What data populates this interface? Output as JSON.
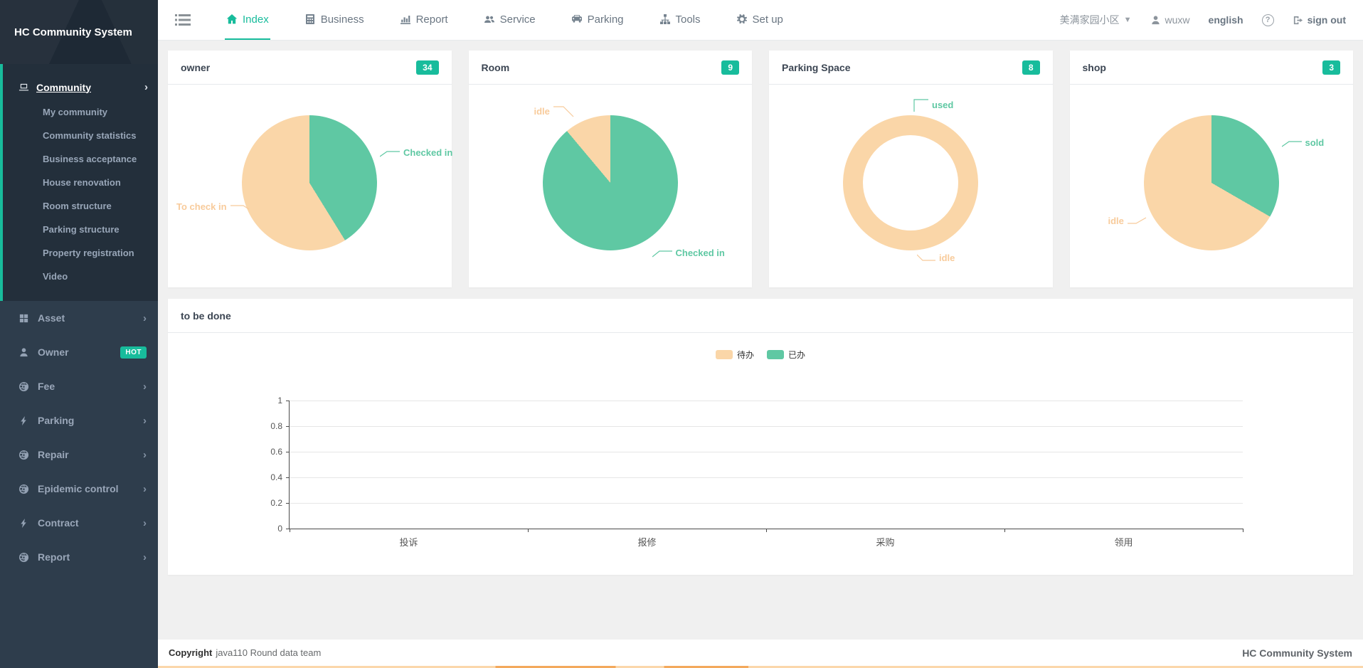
{
  "sidebar": {
    "title": "HC Community System",
    "community_group": {
      "label": "Community",
      "items": [
        "My community",
        "Community statistics",
        "Business acceptance",
        "House renovation",
        "Room structure",
        "Parking structure",
        "Property registration",
        "Video"
      ]
    },
    "items": [
      {
        "label": "Asset"
      },
      {
        "label": "Owner",
        "badge": "HOT"
      },
      {
        "label": "Fee"
      },
      {
        "label": "Parking"
      },
      {
        "label": "Repair"
      },
      {
        "label": "Epidemic control"
      },
      {
        "label": "Contract"
      },
      {
        "label": "Report"
      }
    ]
  },
  "topbar": {
    "tabs": [
      {
        "label": "Index",
        "active": true
      },
      {
        "label": "Business",
        "active": false
      },
      {
        "label": "Report",
        "active": false
      },
      {
        "label": "Service",
        "active": false
      },
      {
        "label": "Parking",
        "active": false
      },
      {
        "label": "Tools",
        "active": false
      },
      {
        "label": "Set up",
        "active": false
      }
    ],
    "right": {
      "community": "美满家园小区",
      "user": "wuxw",
      "language": "english",
      "help": "?",
      "sign_out": "sign out"
    }
  },
  "footer": {
    "copyright_label": "Copyright",
    "copyright_text": "java110 Round data team",
    "brand": "HC Community System"
  },
  "colors": {
    "accent": "#18BC9C",
    "pie_green": "#5FC8A3",
    "pie_peach": "#FAD6A8"
  },
  "chart_data": [
    {
      "id": "owner",
      "type": "pie",
      "title": "owner",
      "badge": "34",
      "slices": [
        {
          "label": "Checked in",
          "value": 14,
          "color": "#5FC8A3"
        },
        {
          "label": "To check in",
          "value": 20,
          "color": "#FAD6A8"
        }
      ]
    },
    {
      "id": "room",
      "type": "pie",
      "title": "Room",
      "badge": "9",
      "slices": [
        {
          "label": "Checked in",
          "value": 8,
          "color": "#5FC8A3"
        },
        {
          "label": "idle",
          "value": 1,
          "color": "#FAD6A8"
        }
      ]
    },
    {
      "id": "parking_space",
      "type": "donut",
      "title": "Parking Space",
      "badge": "8",
      "slices": [
        {
          "label": "used",
          "value": 0,
          "color": "#5FC8A3"
        },
        {
          "label": "idle",
          "value": 8,
          "color": "#FAD6A8"
        }
      ]
    },
    {
      "id": "shop",
      "type": "pie",
      "title": "shop",
      "badge": "3",
      "slices": [
        {
          "label": "sold",
          "value": 1,
          "color": "#5FC8A3"
        },
        {
          "label": "idle",
          "value": 2,
          "color": "#FAD6A8"
        }
      ]
    },
    {
      "id": "todo",
      "type": "bar",
      "title": "to be done",
      "categories": [
        "投诉",
        "报修",
        "采购",
        "领用"
      ],
      "series": [
        {
          "name": "待办",
          "color": "#FAD6A8",
          "values": [
            0,
            0,
            0,
            0
          ]
        },
        {
          "name": "已办",
          "color": "#5FC8A3",
          "values": [
            0,
            0,
            0,
            0
          ]
        }
      ],
      "ylim": [
        0,
        1
      ],
      "yticks": [
        0,
        0.2,
        0.4,
        0.6,
        0.8,
        1
      ],
      "grid": true,
      "legend_position": "top"
    }
  ]
}
